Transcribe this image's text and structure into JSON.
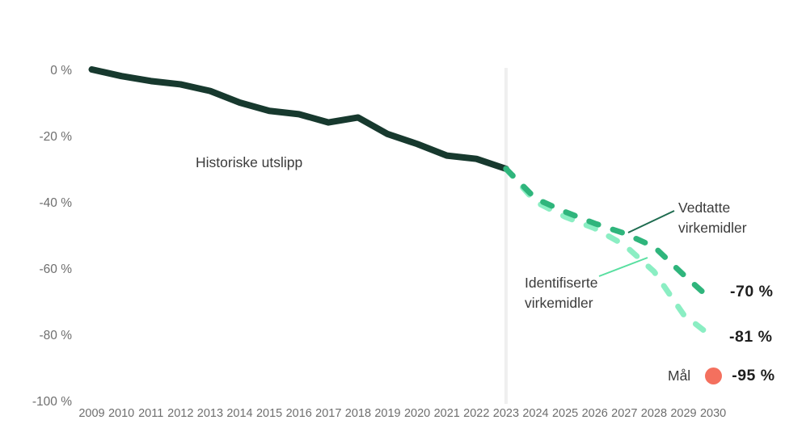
{
  "colors": {
    "background": "#ffffff",
    "axis_text": "#6e6e6e",
    "annotation_text": "#3b3b3b",
    "value_text": "#1e1e1e",
    "divider": "#efefef",
    "callout_dark": "#1e6b4f",
    "callout_light": "#58dfa0"
  },
  "chart_data": {
    "type": "line",
    "title": "",
    "xlabel": "",
    "ylabel": "",
    "grid": false,
    "legend_position": "none",
    "ylim": [
      -100,
      0
    ],
    "x_ticks": [
      2009,
      2010,
      2011,
      2012,
      2013,
      2014,
      2015,
      2016,
      2017,
      2018,
      2019,
      2020,
      2021,
      2022,
      2023,
      2024,
      2025,
      2026,
      2027,
      2028,
      2029,
      2030
    ],
    "y_ticks": [
      {
        "value": 0,
        "label": "0 %"
      },
      {
        "value": -20,
        "label": "-20 %"
      },
      {
        "value": -40,
        "label": "-40 %"
      },
      {
        "value": -60,
        "label": "-60 %"
      },
      {
        "value": -80,
        "label": "-80 %"
      },
      {
        "value": -100,
        "label": "-100 %"
      }
    ],
    "divider_year": 2023,
    "series": [
      {
        "name": "Historiske utslipp",
        "style": "solid",
        "color": "#17392e",
        "x": [
          2009,
          2010,
          2011,
          2012,
          2013,
          2014,
          2015,
          2016,
          2017,
          2018,
          2019,
          2020,
          2021,
          2022,
          2023
        ],
        "values": [
          0,
          -2,
          -3.5,
          -4.5,
          -6.5,
          -10,
          -12.5,
          -13.5,
          -16,
          -14.5,
          -19.5,
          -22.5,
          -26,
          -27,
          -30
        ]
      },
      {
        "name": "Vedtatte virkemidler",
        "style": "dashed",
        "color": "#2fb57c",
        "x": [
          2023,
          2024,
          2025,
          2026,
          2027,
          2028,
          2029,
          2030
        ],
        "values": [
          -30,
          -39,
          -43,
          -46.5,
          -49.5,
          -53.5,
          -62,
          -70
        ],
        "end_label": "-70 %"
      },
      {
        "name": "Identifiserte virkemidler",
        "style": "dashed",
        "color": "#8beec3",
        "x": [
          2023,
          2024,
          2025,
          2026,
          2027,
          2028,
          2029,
          2030
        ],
        "values": [
          -30,
          -40,
          -44.5,
          -48,
          -53,
          -61,
          -74,
          -81
        ],
        "end_label": "-81 %"
      }
    ],
    "target_point": {
      "name": "Mål",
      "year": 2030,
      "value": -95,
      "color": "#f4705e",
      "label": "-95 %"
    }
  }
}
